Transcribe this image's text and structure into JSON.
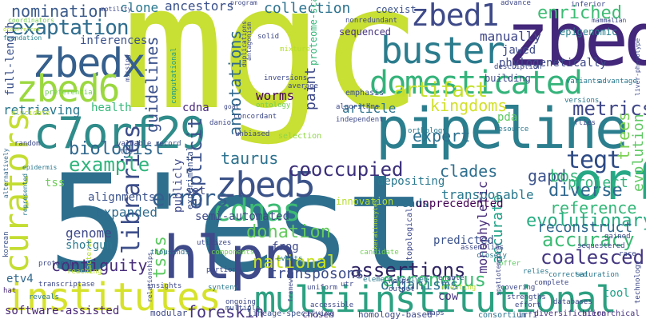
{
  "words": [
    {
      "text": "mgc",
      "color": "#c8df33",
      "vertical": false
    },
    {
      "text": "5'est",
      "color": "#2f6f8e",
      "vertical": false
    },
    {
      "text": "zbed",
      "color": "#43277a",
      "vertical": false
    },
    {
      "text": "pipeline",
      "color": "#2b7e8e",
      "vertical": false
    },
    {
      "text": "hlpn",
      "color": "#3f4a8a",
      "vertical": false
    },
    {
      "text": "multiinstitutional",
      "color": "#2da081",
      "vertical": false
    },
    {
      "text": "institutes",
      "color": "#d6e22b",
      "vertical": false
    },
    {
      "text": "c7orf29",
      "color": "#2f8c8a",
      "vertical": false
    },
    {
      "text": "zbedx",
      "color": "#355f8d",
      "vertical": false
    },
    {
      "text": "zbed1",
      "color": "#3e4a89",
      "vertical": false
    },
    {
      "text": "zbed5",
      "color": "#3b5288",
      "vertical": false
    },
    {
      "text": "zbed6",
      "color": "#9bd83f",
      "vertical": false
    },
    {
      "text": "buster",
      "color": "#2b7c8d",
      "vertical": false
    },
    {
      "text": "domesticated",
      "color": "#34b37a",
      "vertical": false
    },
    {
      "text": "curators",
      "color": "#c4dd32",
      "vertical": true
    },
    {
      "text": "orf",
      "color": "#26a885",
      "vertical": false
    },
    {
      "text": "cdnas",
      "color": "#3dbb74",
      "vertical": false
    },
    {
      "text": "exaptation",
      "color": "#2f6d8e",
      "vertical": false
    },
    {
      "text": "nomination",
      "color": "#3b5b8b",
      "vertical": false
    },
    {
      "text": "cooccupied",
      "color": "#3b2f7a",
      "vertical": false
    },
    {
      "text": "errors",
      "color": "#355f8d",
      "vertical": false
    },
    {
      "text": "libraries",
      "color": "#3d4e8a",
      "vertical": true
    },
    {
      "text": "tegt",
      "color": "#2d4a85",
      "vertical": false
    },
    {
      "text": "enriched",
      "color": "#3dbc74",
      "vertical": false
    },
    {
      "text": "artifact",
      "color": "#c4e02c",
      "vertical": false
    },
    {
      "text": "kingdoms",
      "color": "#d2e02a",
      "vertical": false
    },
    {
      "text": "metrics",
      "color": "#3f4788",
      "vertical": false
    },
    {
      "text": "assertions",
      "color": "#2e2462",
      "vertical": false
    },
    {
      "text": "erroneous",
      "color": "#3fbc73",
      "vertical": false
    },
    {
      "text": "evolutionary",
      "color": "#27ad81",
      "vertical": false
    },
    {
      "text": "accuracy",
      "color": "#3dbb74",
      "vertical": false
    },
    {
      "text": "biologist",
      "color": "#31688e",
      "vertical": false
    },
    {
      "text": "example",
      "color": "#2fb47c",
      "vertical": false
    },
    {
      "text": "national",
      "color": "#c5e021",
      "vertical": false
    },
    {
      "text": "diverse",
      "color": "#31688e",
      "vertical": false
    },
    {
      "text": "donation",
      "color": "#65cb5e",
      "vertical": false
    },
    {
      "text": "coalesced",
      "color": "#453781",
      "vertical": false
    },
    {
      "text": "reference",
      "color": "#35b779",
      "vertical": false
    },
    {
      "text": "expert",
      "color": "#2d708e",
      "vertical": false
    },
    {
      "text": "taurus",
      "color": "#2c728e",
      "vertical": false
    },
    {
      "text": "clades",
      "color": "#2e6e8e",
      "vertical": false
    },
    {
      "text": "gapd",
      "color": "#3b528b",
      "vertical": false
    },
    {
      "text": "bos",
      "color": "#35b779",
      "vertical": false
    },
    {
      "text": "project",
      "color": "#2fb47c",
      "vertical": false
    },
    {
      "text": "trees",
      "color": "#7ad151",
      "vertical": true
    },
    {
      "text": "evolution",
      "color": "#5ec962",
      "vertical": true
    },
    {
      "text": "contiguity",
      "color": "#472c7a",
      "vertical": false
    },
    {
      "text": "transposons",
      "color": "#3d4d8a",
      "vertical": false
    },
    {
      "text": "organisms",
      "color": "#2c718e",
      "vertical": false
    },
    {
      "text": "reconstruct",
      "color": "#31688e",
      "vertical": false
    },
    {
      "text": "explicit",
      "color": "#3b528b",
      "vertical": true
    },
    {
      "text": "tsss",
      "color": "#5ec962",
      "vertical": true
    },
    {
      "text": "foreskin",
      "color": "#46337f",
      "vertical": false
    },
    {
      "text": "software-assisted",
      "color": "#482576",
      "vertical": false
    },
    {
      "text": "retrieving",
      "color": "#2a788e",
      "vertical": false
    },
    {
      "text": "guidelines",
      "color": "#3b528b",
      "vertical": true
    },
    {
      "text": "annotations",
      "color": "#31688e",
      "vertical": true
    },
    {
      "text": "collection",
      "color": "#2c728e",
      "vertical": false
    },
    {
      "text": "clone",
      "color": "#2a788e",
      "vertical": false
    },
    {
      "text": "ancestors",
      "color": "#3b528b",
      "vertical": false
    },
    {
      "text": "inferences",
      "color": "#3b528b",
      "vertical": false
    },
    {
      "text": "worms",
      "color": "#440154",
      "vertical": false
    },
    {
      "text": "paint",
      "color": "#3e4a89",
      "vertical": true
    },
    {
      "text": "manually",
      "color": "#3f4788",
      "vertical": false
    },
    {
      "text": "jawed",
      "color": "#3e4989",
      "vertical": false
    },
    {
      "text": "phylogenetically",
      "color": "#3e4989",
      "vertical": false
    },
    {
      "text": "article",
      "color": "#2c728e",
      "vertical": false
    },
    {
      "text": "monophyletic",
      "color": "#472d7b",
      "vertical": true
    },
    {
      "text": "accurate",
      "color": "#1fa187",
      "vertical": true
    },
    {
      "text": "transposable",
      "color": "#2a788e",
      "vertical": false
    },
    {
      "text": "genome",
      "color": "#3e4989",
      "vertical": false
    },
    {
      "text": "shotgun",
      "color": "#2a788e",
      "vertical": false
    },
    {
      "text": "expanded",
      "color": "#2f6c8e",
      "vertical": false
    },
    {
      "text": "alignments",
      "color": "#3b528b",
      "vertical": false
    },
    {
      "text": "publicly",
      "color": "#3e4989",
      "vertical": true
    },
    {
      "text": "semi-automated",
      "color": "#3e4989",
      "vertical": false
    },
    {
      "text": "full-length",
      "color": "#3b528b",
      "vertical": true
    },
    {
      "text": "health",
      "color": "#35b779",
      "vertical": false
    },
    {
      "text": "cdna",
      "color": "#482878",
      "vertical": false
    },
    {
      "text": "tss",
      "color": "#6ece58",
      "vertical": false
    },
    {
      "text": "set",
      "color": "#3e4989",
      "vertical": false
    },
    {
      "text": "pda",
      "color": "#5ec962",
      "vertical": false
    },
    {
      "text": "cow",
      "color": "#46327e",
      "vertical": false
    },
    {
      "text": "frog",
      "color": "#3e4989",
      "vertical": false
    },
    {
      "text": "reads",
      "color": "#2d708e",
      "vertical": false
    },
    {
      "text": "tool",
      "color": "#1fa187",
      "vertical": false
    },
    {
      "text": "predicted",
      "color": "#3b528b",
      "vertical": false
    },
    {
      "text": "unprecedented",
      "color": "#440154",
      "vertical": false
    },
    {
      "text": "depositing",
      "color": "#2a788e",
      "vertical": false
    },
    {
      "text": "innovation",
      "color": "#b5de2b",
      "vertical": false
    },
    {
      "text": "etv4",
      "color": "#31688e",
      "vertical": false
    },
    {
      "text": "proteome-scale",
      "color": "#35b779",
      "vertical": true
    },
    {
      "text": "sequenced",
      "color": "#46327e",
      "vertical": false
    },
    {
      "text": "building",
      "color": "#3e4989",
      "vertical": false
    },
    {
      "text": "coexist",
      "color": "#3b528b",
      "vertical": false
    },
    {
      "text": "epigenomic",
      "color": "#26828e",
      "vertical": false
    },
    {
      "text": "preferential",
      "color": "#73d056",
      "vertical": false
    },
    {
      "text": "elucidate",
      "color": "#b5de2b",
      "vertical": false
    },
    {
      "text": "coordinators",
      "color": "#7ad151",
      "vertical": false
    },
    {
      "text": "foundation",
      "color": "#26828e",
      "vertical": false
    },
    {
      "text": "computational",
      "color": "#1f9e89",
      "vertical": true
    },
    {
      "text": "emphasis",
      "color": "#3b528b",
      "vertical": false
    },
    {
      "text": "experimental",
      "color": "#3b528b",
      "vertical": true
    },
    {
      "text": "concordant",
      "color": "#3e4989",
      "vertical": false
    },
    {
      "text": "ontology",
      "color": "#73d056",
      "vertical": false
    },
    {
      "text": "selection",
      "color": "#8fd744",
      "vertical": false
    },
    {
      "text": "topological",
      "color": "#3e4989",
      "vertical": true
    },
    {
      "text": "element-derived",
      "color": "#2a788e",
      "vertical": false
    },
    {
      "text": "modular",
      "color": "#3e4989",
      "vertical": false
    },
    {
      "text": "chosen",
      "color": "#482878",
      "vertical": false
    },
    {
      "text": "homology-based",
      "color": "#3e4989",
      "vertical": false
    },
    {
      "text": "consortium",
      "color": "#2c728e",
      "vertical": false
    },
    {
      "text": "irf1",
      "color": "#3e4989",
      "vertical": false
    },
    {
      "text": "diversification",
      "color": "#46327e",
      "vertical": false
    },
    {
      "text": "hierarchical",
      "color": "#46327e",
      "vertical": false
    },
    {
      "text": "synteny",
      "color": "#2a788e",
      "vertical": false
    },
    {
      "text": "ongoing",
      "color": "#3e4989",
      "vertical": false
    },
    {
      "text": "lineage-specifying",
      "color": "#3b528b",
      "vertical": false
    },
    {
      "text": "multiple",
      "color": "#3b528b",
      "vertical": false
    },
    {
      "text": "thousands",
      "color": "#2d708e",
      "vertical": false
    },
    {
      "text": "protocols",
      "color": "#3e4989",
      "vertical": false
    },
    {
      "text": "bacteria",
      "color": "#b5de2b",
      "vertical": true
    },
    {
      "text": "reaching",
      "color": "#b5de2b",
      "vertical": false
    },
    {
      "text": "transcriptase",
      "color": "#3e4989",
      "vertical": false
    },
    {
      "text": "reveals",
      "color": "#2a788e",
      "vertical": false
    },
    {
      "text": "hat",
      "color": "#482878",
      "vertical": false
    },
    {
      "text": "korean",
      "color": "#3b528b",
      "vertical": true
    },
    {
      "text": "alternatively",
      "color": "#31688e",
      "vertical": true
    },
    {
      "text": "random",
      "color": "#3e4989",
      "vertical": false
    },
    {
      "text": "valuable",
      "color": "#3e4989",
      "vertical": false
    },
    {
      "text": "tfs",
      "color": "#3e4989",
      "vertical": false
    },
    {
      "text": "record",
      "color": "#3b528b",
      "vertical": false
    },
    {
      "text": "unbiased",
      "color": "#3e4989",
      "vertical": false
    },
    {
      "text": "utilizes",
      "color": "#3e4989",
      "vertical": false
    },
    {
      "text": "components",
      "color": "#73d056",
      "vertical": false
    },
    {
      "text": "events",
      "color": "#2a788e",
      "vertical": false
    },
    {
      "text": "candidate",
      "color": "#73d056",
      "vertical": false
    },
    {
      "text": "assemblies",
      "color": "#3e4989",
      "vertical": false
    },
    {
      "text": "closely",
      "color": "#2a788e",
      "vertical": false
    },
    {
      "text": "offer",
      "color": "#5ec962",
      "vertical": false
    },
    {
      "text": "corrected",
      "color": "#2a788e",
      "vertical": false
    },
    {
      "text": "saturation",
      "color": "#2a788e",
      "vertical": false
    },
    {
      "text": "relies",
      "color": "#2a788e",
      "vertical": false
    },
    {
      "text": "complete",
      "color": "#3e4989",
      "vertical": false
    },
    {
      "text": "covering",
      "color": "#3e4989",
      "vertical": false
    },
    {
      "text": "strengths",
      "color": "#3e4989",
      "vertical": false
    },
    {
      "text": "databases",
      "color": "#3e4989",
      "vertical": false
    },
    {
      "text": "effort",
      "color": "#3e4989",
      "vertical": false
    },
    {
      "text": "technology",
      "color": "#3e4989",
      "vertical": true
    },
    {
      "text": "race",
      "color": "#3e4989",
      "vertical": false
    },
    {
      "text": "gained",
      "color": "#3e4989",
      "vertical": false
    },
    {
      "text": "sequestered",
      "color": "#3e4989",
      "vertical": false
    },
    {
      "text": "inferior",
      "color": "#3e4989",
      "vertical": false
    },
    {
      "text": "mammalian",
      "color": "#3e4989",
      "vertical": false
    },
    {
      "text": "liver-phenotype",
      "color": "#3e4989",
      "vertical": true
    },
    {
      "text": "variants",
      "color": "#2a788e",
      "vertical": false
    },
    {
      "text": "advantage",
      "color": "#2a788e",
      "vertical": false
    },
    {
      "text": "versions",
      "color": "#2a788e",
      "vertical": false
    },
    {
      "text": "flies",
      "color": "#3e4989",
      "vertical": false
    },
    {
      "text": "description",
      "color": "#3e4989",
      "vertical": false
    },
    {
      "text": "resource",
      "color": "#2a788e",
      "vertical": false
    },
    {
      "text": "orthology",
      "color": "#2a788e",
      "vertical": false
    },
    {
      "text": "advance",
      "color": "#3e4989",
      "vertical": false
    },
    {
      "text": "independent",
      "color": "#3e4989",
      "vertical": false
    },
    {
      "text": "algorithms",
      "color": "#3e4989",
      "vertical": false
    },
    {
      "text": "nonredundant",
      "color": "#3e4989",
      "vertical": false
    },
    {
      "text": "solid",
      "color": "#3e4989",
      "vertical": false
    },
    {
      "text": "mixture",
      "color": "#b5de2b",
      "vertical": false
    },
    {
      "text": "inversions",
      "color": "#3e4989",
      "vertical": false
    },
    {
      "text": "duplications",
      "color": "#3e4989",
      "vertical": true
    },
    {
      "text": "average",
      "color": "#3e4989",
      "vertical": false
    },
    {
      "text": "antagonism",
      "color": "#3e4989",
      "vertical": true
    },
    {
      "text": "program",
      "color": "#3e4989",
      "vertical": false
    },
    {
      "text": "motility",
      "color": "#3e4989",
      "vertical": false
    },
    {
      "text": "missing",
      "color": "#3e4989",
      "vertical": true
    },
    {
      "text": "goal",
      "color": "#3e4989",
      "vertical": false
    },
    {
      "text": "danio",
      "color": "#3e4989",
      "vertical": false
    },
    {
      "text": "portion",
      "color": "#3e4989",
      "vertical": false
    },
    {
      "text": "insights",
      "color": "#3e4989",
      "vertical": false
    },
    {
      "text": "relationships",
      "color": "#3e4989",
      "vertical": true
    },
    {
      "text": "represented",
      "color": "#2a788e",
      "vertical": true
    },
    {
      "text": "epidermis",
      "color": "#2a788e",
      "vertical": false
    },
    {
      "text": "framework",
      "color": "#3e4989",
      "vertical": true
    },
    {
      "text": "accessible",
      "color": "#3e4989",
      "vertical": false
    },
    {
      "text": "uniform",
      "color": "#3e4989",
      "vertical": false
    },
    {
      "text": "utr",
      "color": "#3e4989",
      "vertical": false
    },
    {
      "text": "output",
      "color": "#3e4989",
      "vertical": false
    },
    {
      "text": "helps",
      "color": "#3e4989",
      "vertical": false
    },
    {
      "text": "spatiotemporal",
      "color": "#3e4989",
      "vertical": true
    },
    {
      "text": "enable",
      "color": "#3e4989",
      "vertical": false
    },
    {
      "text": "creating",
      "color": "#b5de2b",
      "vertical": false
    },
    {
      "text": "keratinocytes",
      "color": "#b5de2b",
      "vertical": true
    },
    {
      "text": "maps",
      "color": "#3e4989",
      "vertical": false
    },
    {
      "text": "occurrences",
      "color": "#b5de2b",
      "vertical": false
    }
  ]
}
